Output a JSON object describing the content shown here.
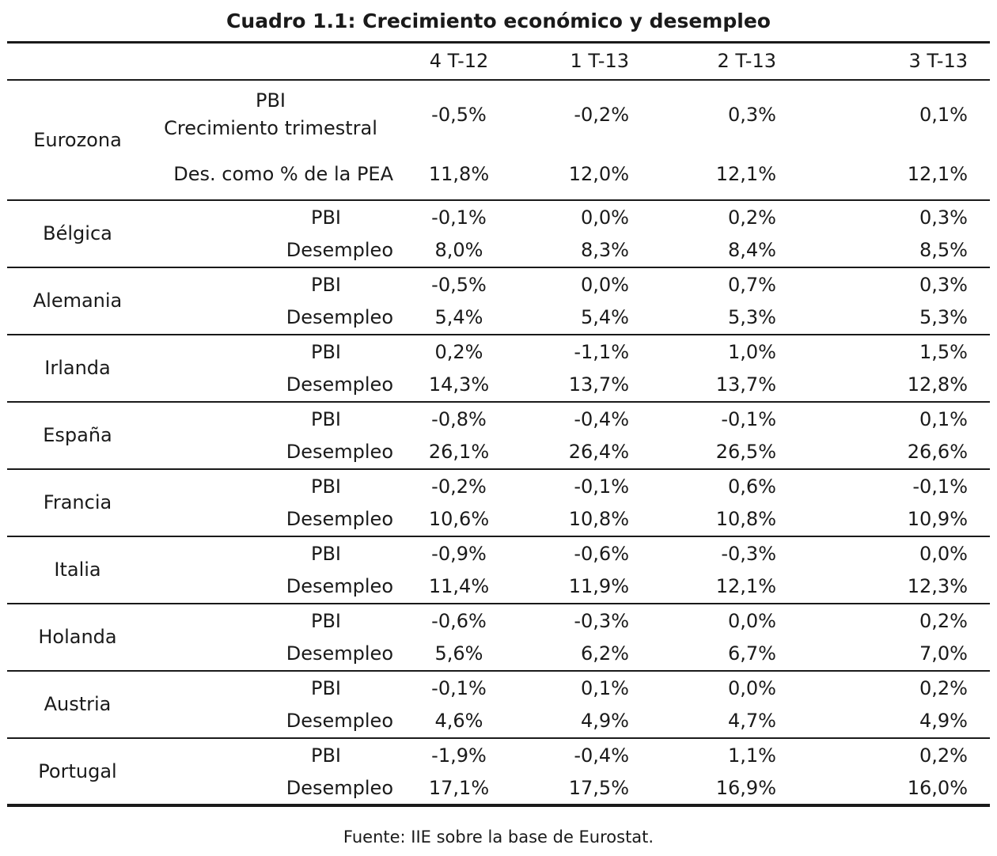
{
  "title": "Cuadro 1.1: Crecimiento económico y desempleo",
  "columns": [
    "4 T-12",
    "1 T-13",
    "2 T-13",
    "3 T-13"
  ],
  "eurozona": {
    "name": "Eurozona",
    "pbi_label_1": "PBI",
    "pbi_label_2": "Crecimiento trimestral",
    "des_label": "Des. como % de la PEA",
    "pbi": [
      "-0,5%",
      "-0,2%",
      "0,3%",
      "0,1%"
    ],
    "des": [
      "11,8%",
      "12,0%",
      "12,1%",
      "12,1%"
    ]
  },
  "row_labels": {
    "pbi": "PBI",
    "des": "Desempleo"
  },
  "countries": [
    {
      "name": "Bélgica",
      "pbi": [
        "-0,1%",
        "0,0%",
        "0,2%",
        "0,3%"
      ],
      "des": [
        "8,0%",
        "8,3%",
        "8,4%",
        "8,5%"
      ]
    },
    {
      "name": "Alemania",
      "pbi": [
        "-0,5%",
        "0,0%",
        "0,7%",
        "0,3%"
      ],
      "des": [
        "5,4%",
        "5,4%",
        "5,3%",
        "5,3%"
      ]
    },
    {
      "name": "Irlanda",
      "pbi": [
        "0,2%",
        "-1,1%",
        "1,0%",
        "1,5%"
      ],
      "des": [
        "14,3%",
        "13,7%",
        "13,7%",
        "12,8%"
      ]
    },
    {
      "name": "España",
      "pbi": [
        "-0,8%",
        "-0,4%",
        "-0,1%",
        "0,1%"
      ],
      "des": [
        "26,1%",
        "26,4%",
        "26,5%",
        "26,6%"
      ]
    },
    {
      "name": "Francia",
      "pbi": [
        "-0,2%",
        "-0,1%",
        "0,6%",
        "-0,1%"
      ],
      "des": [
        "10,6%",
        "10,8%",
        "10,8%",
        "10,9%"
      ]
    },
    {
      "name": "Italia",
      "pbi": [
        "-0,9%",
        "-0,6%",
        "-0,3%",
        "0,0%"
      ],
      "des": [
        "11,4%",
        "11,9%",
        "12,1%",
        "12,3%"
      ]
    },
    {
      "name": "Holanda",
      "pbi": [
        "-0,6%",
        "-0,3%",
        "0,0%",
        "0,2%"
      ],
      "des": [
        "5,6%",
        "6,2%",
        "6,7%",
        "7,0%"
      ]
    },
    {
      "name": "Austria",
      "pbi": [
        "-0,1%",
        "0,1%",
        "0,0%",
        "0,2%"
      ],
      "des": [
        "4,6%",
        "4,9%",
        "4,7%",
        "4,9%"
      ]
    },
    {
      "name": "Portugal",
      "pbi": [
        "-1,9%",
        "-0,4%",
        "1,1%",
        "0,2%"
      ],
      "des": [
        "17,1%",
        "17,5%",
        "16,9%",
        "16,0%"
      ]
    }
  ],
  "source": "Fuente: IIE sobre la base de Eurostat."
}
